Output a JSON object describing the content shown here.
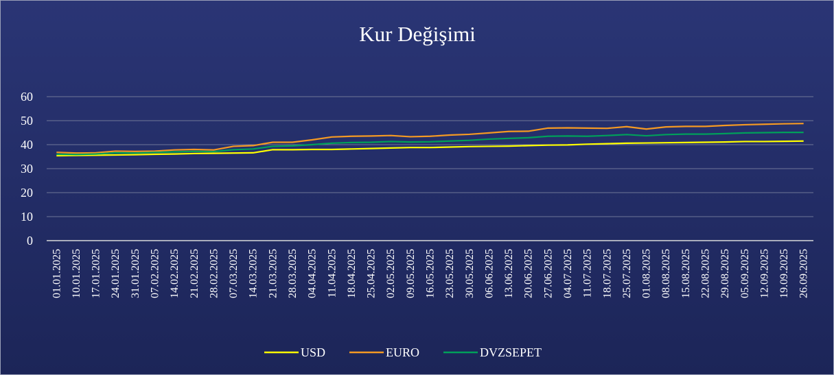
{
  "chart_data": {
    "type": "line",
    "title": "Kur Değişimi",
    "categories": [
      "01.01.2025",
      "10.01.2025",
      "17.01.2025",
      "24.01.2025",
      "31.01.2025",
      "07.02.2025",
      "14.02.2025",
      "21.02.2025",
      "28.02.2025",
      "07.03.2025",
      "14.03.2025",
      "21.03.2025",
      "28.03.2025",
      "04.04.2025",
      "11.04.2025",
      "18.04.2025",
      "25.04.2025",
      "02.05.2025",
      "09.05.2025",
      "16.05.2025",
      "23.05.2025",
      "30.05.2025",
      "06.06.2025",
      "13.06.2025",
      "20.06.2025",
      "27.06.2025",
      "04.07.2025",
      "11.07.2025",
      "18.07.2025",
      "25.07.2025",
      "01.08.2025",
      "08.08.2025",
      "15.08.2025",
      "22.08.2025",
      "29.08.2025",
      "05.09.2025",
      "12.09.2025",
      "19.09.2025",
      "26.09.2025"
    ],
    "series": [
      {
        "name": "USD",
        "color": "#ffff00",
        "values": [
          35.4,
          35.5,
          35.6,
          35.7,
          35.8,
          36.0,
          36.1,
          36.3,
          36.4,
          36.5,
          36.6,
          37.9,
          37.9,
          38.0,
          38.0,
          38.2,
          38.4,
          38.6,
          38.8,
          38.8,
          39.0,
          39.2,
          39.3,
          39.4,
          39.6,
          39.8,
          39.9,
          40.2,
          40.4,
          40.6,
          40.7,
          40.8,
          40.9,
          41.0,
          41.1,
          41.3,
          41.3,
          41.4,
          41.5
        ]
      },
      {
        "name": "EURO",
        "color": "#f59a23",
        "values": [
          36.8,
          36.5,
          36.6,
          37.3,
          37.2,
          37.3,
          37.8,
          38.0,
          37.8,
          39.3,
          39.6,
          41.0,
          41.0,
          42.0,
          43.2,
          43.5,
          43.6,
          43.8,
          43.3,
          43.5,
          44.0,
          44.3,
          44.9,
          45.5,
          45.6,
          46.9,
          47.0,
          46.9,
          46.8,
          47.5,
          46.5,
          47.4,
          47.6,
          47.6,
          48.0,
          48.3,
          48.5,
          48.7,
          48.8
        ]
      },
      {
        "name": "DVZSEPET",
        "color": "#00a05a",
        "values": [
          36.0,
          35.9,
          36.1,
          36.6,
          36.5,
          36.8,
          37.0,
          37.2,
          37.1,
          37.9,
          38.2,
          39.3,
          39.5,
          40.0,
          40.6,
          40.9,
          41.0,
          41.3,
          41.1,
          41.2,
          41.5,
          41.8,
          42.3,
          42.6,
          42.9,
          43.5,
          43.6,
          43.5,
          43.8,
          44.2,
          43.7,
          44.2,
          44.4,
          44.4,
          44.6,
          44.9,
          45.0,
          45.1,
          45.1
        ]
      }
    ],
    "ylim": [
      0,
      60
    ],
    "yticks": [
      0,
      10,
      20,
      30,
      40,
      50,
      60
    ],
    "grid": true,
    "legend": "bottom"
  }
}
